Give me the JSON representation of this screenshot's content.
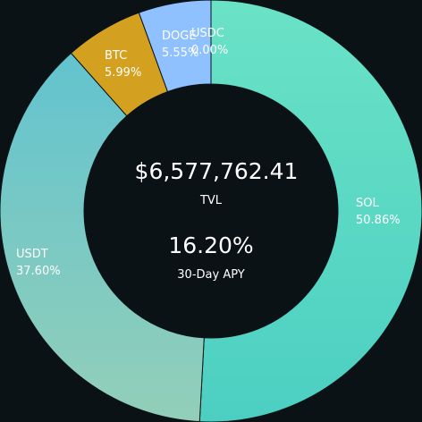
{
  "chart_data": {
    "type": "pie",
    "subtype": "donut",
    "slices": [
      {
        "label": "SOL",
        "value": 50.86,
        "display": "50.86%",
        "color": "#5fd6c3"
      },
      {
        "label": "USDT",
        "value": 37.6,
        "display": "37.60%",
        "color": "#7ec8c4"
      },
      {
        "label": "BTC",
        "value": 5.99,
        "display": "5.99%",
        "color": "#d4a020"
      },
      {
        "label": "DOGE",
        "value": 5.55,
        "display": "5.55%",
        "color": "#8fc0ff"
      },
      {
        "label": "USDC",
        "value": 0.0,
        "display": "0.00%",
        "color": "#2f78d6"
      }
    ],
    "gradients": {
      "SOL": [
        "#6ae2c6",
        "#4ccfc2"
      ],
      "USDT": [
        "#62c3cf",
        "#93cfb8"
      ]
    },
    "background": "#0a1216"
  },
  "center": {
    "tvl_value": "$6,577,762.41",
    "tvl_label": "TVL",
    "apy_value": "16.20%",
    "apy_label": "30-Day APY"
  }
}
